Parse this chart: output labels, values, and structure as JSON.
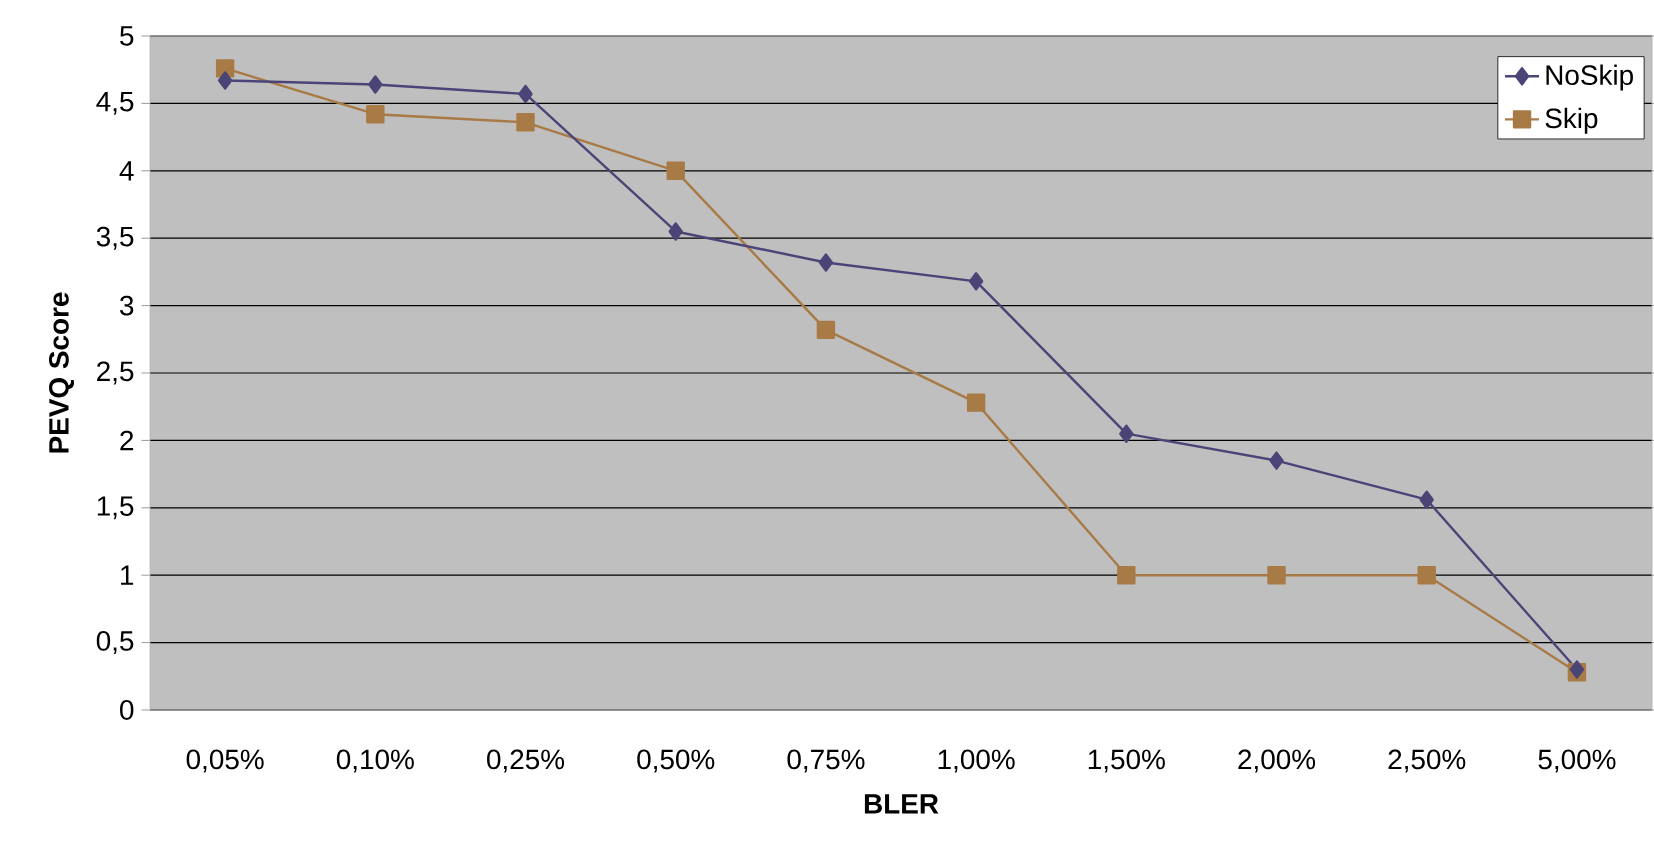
{
  "chart_data": {
    "type": "line",
    "xlabel": "BLER",
    "ylabel": "PEVQ Score",
    "categories": [
      "0,05%",
      "0,10%",
      "0,25%",
      "0,50%",
      "0,75%",
      "1,00%",
      "1,50%",
      "2,00%",
      "2,50%",
      "5,00%"
    ],
    "series": [
      {
        "name": "NoSkip",
        "color": "#4b4577",
        "marker": "diamond",
        "values": [
          4.67,
          4.64,
          4.57,
          3.55,
          3.32,
          3.18,
          2.05,
          1.85,
          1.56,
          0.3
        ]
      },
      {
        "name": "Skip",
        "color": "#a87a45",
        "marker": "square",
        "values": [
          4.76,
          4.42,
          4.36,
          4.0,
          2.82,
          2.28,
          1.0,
          1.0,
          1.0,
          0.28
        ]
      }
    ],
    "ylim": [
      0,
      5
    ],
    "yticks": [
      0,
      {
        "value": 0.5,
        "label": "0,5"
      },
      1,
      {
        "value": 1.5,
        "label": "1,5"
      },
      2,
      {
        "value": 2.5,
        "label": "2,5"
      },
      3,
      {
        "value": 3.5,
        "label": "3,5"
      },
      4,
      {
        "value": 4.5,
        "label": "4,5"
      },
      5
    ],
    "grid": "y",
    "legend": "top right",
    "line_style": "solid"
  }
}
